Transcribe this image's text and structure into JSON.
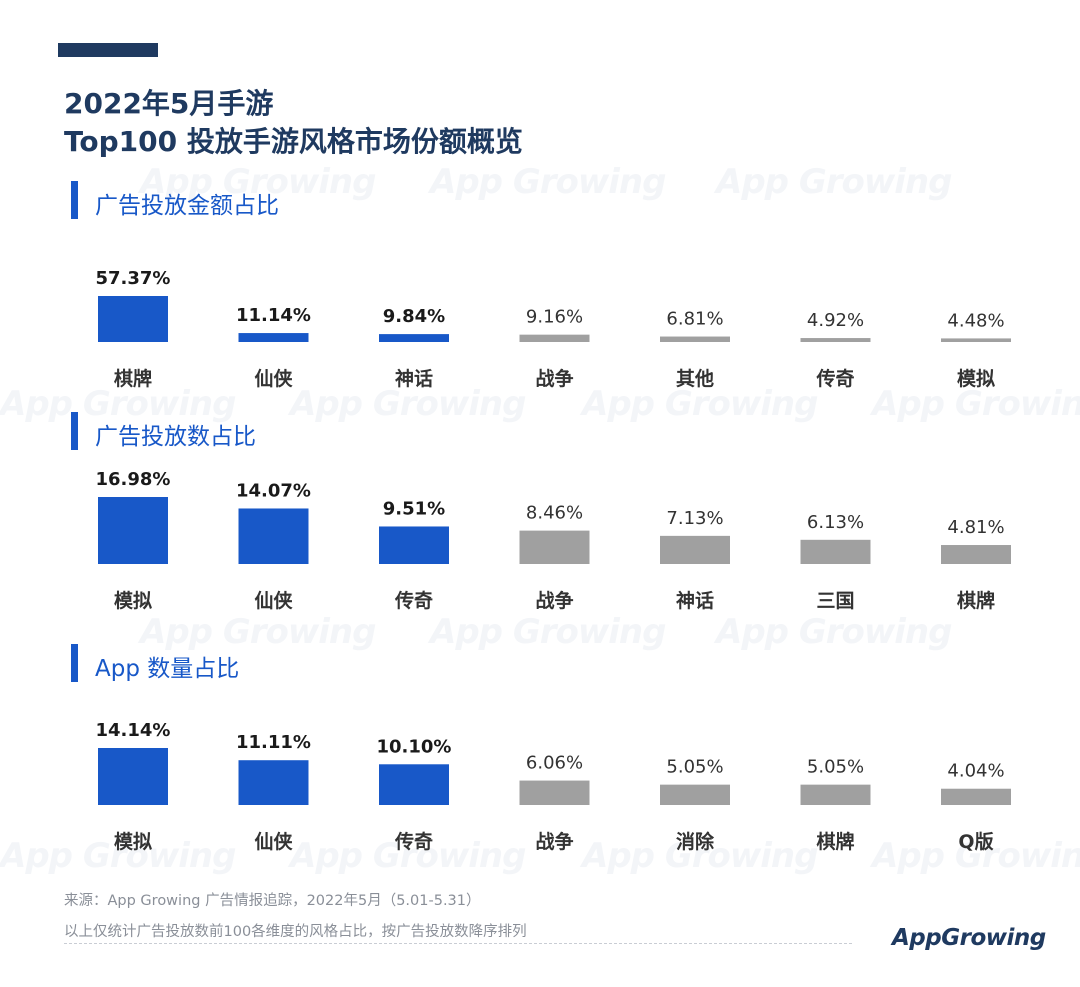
{
  "title_line1": "2022年5月手游",
  "title_line2": "Top100 投放手游风格市场份额概览",
  "watermark": "App Growing",
  "colors": {
    "primary": "#1f3a60",
    "highlight": "#1858c8",
    "gray": "#a0a0a0"
  },
  "chart_data": [
    {
      "type": "bar",
      "title": "广告投放金额占比",
      "categories": [
        "棋牌",
        "仙侠",
        "神话",
        "战争",
        "其他",
        "传奇",
        "模拟"
      ],
      "value_labels": [
        "57.37%",
        "11.14%",
        "9.84%",
        "9.16%",
        "6.81%",
        "4.92%",
        "4.48%"
      ],
      "values": [
        57.37,
        11.14,
        9.84,
        9.16,
        6.81,
        4.92,
        4.48
      ],
      "highlight_top": 3
    },
    {
      "type": "bar",
      "title": "广告投放数占比",
      "categories": [
        "模拟",
        "仙侠",
        "传奇",
        "战争",
        "神话",
        "三国",
        "棋牌"
      ],
      "value_labels": [
        "16.98%",
        "14.07%",
        "9.51%",
        "8.46%",
        "7.13%",
        "6.13%",
        "4.81%"
      ],
      "values": [
        16.98,
        14.07,
        9.51,
        8.46,
        7.13,
        6.13,
        4.81
      ],
      "highlight_top": 3
    },
    {
      "type": "bar",
      "title": "App 数量占比",
      "categories": [
        "模拟",
        "仙侠",
        "传奇",
        "战争",
        "消除",
        "棋牌",
        "Q版"
      ],
      "value_labels": [
        "14.14%",
        "11.11%",
        "10.10%",
        "6.06%",
        "5.05%",
        "5.05%",
        "4.04%"
      ],
      "values": [
        14.14,
        11.11,
        10.1,
        6.06,
        5.05,
        5.05,
        4.04
      ],
      "highlight_top": 3
    }
  ],
  "footer": {
    "source": "来源：App Growing 广告情报追踪，2022年5月（5.01-5.31）",
    "note": "以上仅统计广告投放数前100各维度的风格占比，按广告投放数降序排列"
  },
  "logo_text": "AppGrowing"
}
